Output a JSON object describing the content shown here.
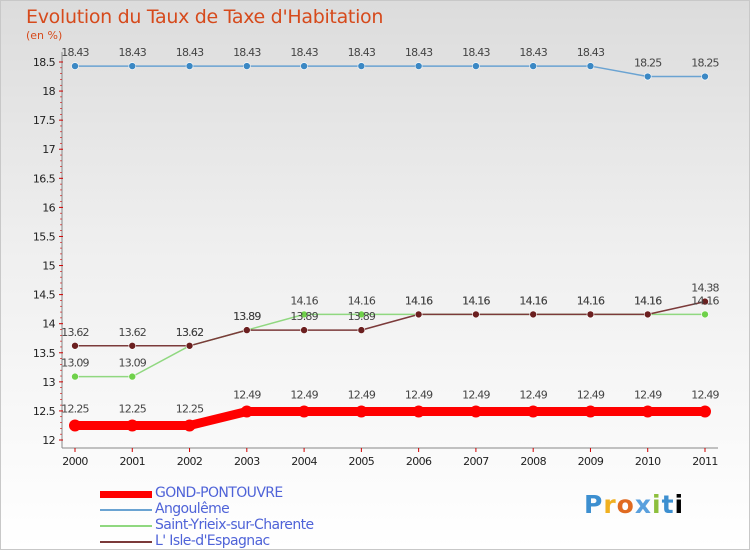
{
  "header": {
    "title": "Evolution du Taux de Taxe d'Habitation",
    "subtitle": "(en %)"
  },
  "logo": {
    "letters": [
      "P",
      "r",
      "o",
      "x",
      "i",
      "t",
      "i"
    ]
  },
  "chart_data": {
    "type": "line",
    "title": "Evolution du Taux de Taxe d'Habitation",
    "ylabel": "(en %)",
    "xlabel": "",
    "x": [
      "2000",
      "2001",
      "2002",
      "2003",
      "2004",
      "2005",
      "2006",
      "2007",
      "2008",
      "2009",
      "2010",
      "2011"
    ],
    "ylim": [
      12,
      18.5
    ],
    "yticks": [
      "12",
      "12.5",
      "13",
      "13.5",
      "14",
      "14.5",
      "15",
      "15.5",
      "16",
      "16.5",
      "17",
      "17.5",
      "18",
      "18.5"
    ],
    "grid": false,
    "legend_position": "bottom-left",
    "series": [
      {
        "name": "GOND-PONTOUVRE",
        "color": "#ff0000",
        "values": [
          12.25,
          12.25,
          12.25,
          12.49,
          12.49,
          12.49,
          12.49,
          12.49,
          12.49,
          12.49,
          12.49,
          12.49
        ],
        "labels": [
          "12.25",
          "12.25",
          "12.25",
          "12.49",
          "12.49",
          "12.49",
          "12.49",
          "12.49",
          "12.49",
          "12.49",
          "12.49",
          "12.49"
        ]
      },
      {
        "name": "Angoulême",
        "color": "#6aa3d2",
        "values": [
          18.43,
          18.43,
          18.43,
          18.43,
          18.43,
          18.43,
          18.43,
          18.43,
          18.43,
          18.43,
          18.25,
          18.25
        ],
        "labels": [
          "18.43",
          "18.43",
          "18.43",
          "18.43",
          "18.43",
          "18.43",
          "18.43",
          "18.43",
          "18.43",
          "18.43",
          "18.25",
          "18.25"
        ]
      },
      {
        "name": "Saint-Yrieix-sur-Charente",
        "color": "#90d880",
        "values": [
          13.09,
          13.09,
          13.62,
          13.89,
          14.16,
          14.16,
          14.16,
          14.16,
          14.16,
          14.16,
          14.16,
          14.16
        ],
        "labels": [
          "13.09",
          "13.09",
          "13.62",
          "13.89",
          "14.16",
          "14.16",
          "14.16",
          "14.16",
          "14.16",
          "14.16",
          "14.16",
          "14.16"
        ]
      },
      {
        "name": "L' Isle-d'Espagnac",
        "color": "#7b3a3a",
        "values": [
          13.62,
          13.62,
          13.62,
          13.89,
          13.89,
          13.89,
          14.16,
          14.16,
          14.16,
          14.16,
          14.16,
          14.38
        ],
        "labels": [
          "13.62",
          "13.62",
          "13.62",
          "13.89",
          "13.89",
          "13.89",
          "14.16",
          "14.16",
          "14.16",
          "14.16",
          "14.16",
          "14.38"
        ]
      }
    ]
  }
}
